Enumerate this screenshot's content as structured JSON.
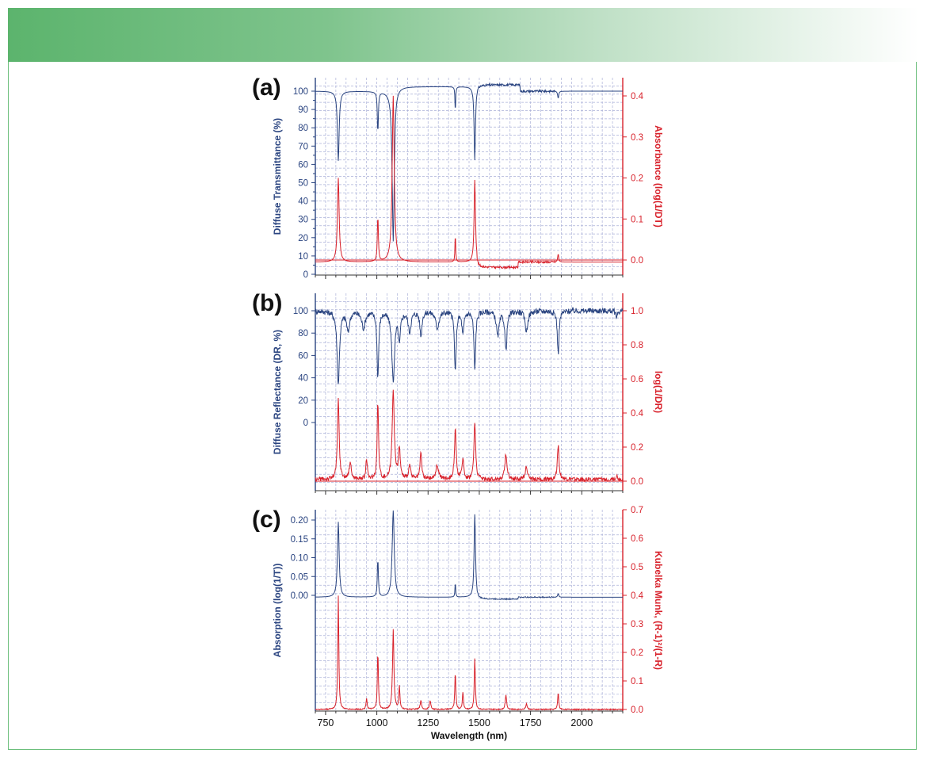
{
  "colors": {
    "blue": "#2a4480",
    "red": "#d8212b",
    "grid": "#aab0d8",
    "banner_green": "#5cb46d",
    "frame_green": "#6cbf7c"
  },
  "chart_data": [
    {
      "type": "line",
      "panel_label": "(a)",
      "xlim": [
        700,
        2200
      ],
      "ylabel": "Diffuse Transmittance (%)",
      "ylabel_right": "Absorbance (log(1/DT)",
      "ylim": [
        0,
        105
      ],
      "ylim_right": [
        -0.03,
        0.445
      ],
      "yticks": [
        0,
        10,
        20,
        30,
        40,
        50,
        60,
        70,
        80,
        90,
        100
      ],
      "yticks_right": [
        0.0,
        0.1,
        0.2,
        0.3,
        0.4
      ],
      "yticks_right_labels": [
        "0.0",
        "0.1",
        "0.2",
        "0.3",
        "0.4"
      ],
      "grid": true,
      "series": [
        {
          "axis": "left",
          "color": "#2a4480",
          "baseline": 100,
          "noise": 0.6,
          "noise_from": 1480,
          "noise_to": 1870,
          "plateaus": [
            [
              1090,
              1480,
              102.5
            ],
            [
              1480,
              1700,
              103.5
            ]
          ],
          "peaks": [
            [
              812,
              -38,
              5
            ],
            [
              1005,
              -22,
              3
            ],
            [
              1080,
              -82,
              6
            ],
            [
              1383,
              -14,
              2
            ],
            [
              1478,
              -40,
              4
            ],
            [
              1885,
              -4,
              3
            ]
          ]
        },
        {
          "axis": "right",
          "color": "#d8212b",
          "baseline": -0.005,
          "noise": 0.0025,
          "noise_from": 1480,
          "noise_to": 1870,
          "plateaus": [
            [
              1490,
              1690,
              -0.018
            ]
          ],
          "peaks": [
            [
              812,
              0.205,
              5
            ],
            [
              1005,
              0.11,
              3
            ],
            [
              1080,
              0.405,
              6
            ],
            [
              1383,
              0.07,
              2
            ],
            [
              1478,
              0.2,
              4
            ],
            [
              1885,
              0.02,
              3
            ]
          ],
          "flat_line": 0.0
        }
      ]
    },
    {
      "type": "line",
      "panel_label": "(b)",
      "xlim": [
        700,
        2200
      ],
      "ylabel": "Diffuse Reflectance (DR, %)",
      "ylabel_right": "log(1/DR)",
      "ylim_right": [
        -0.03,
        1.1
      ],
      "yticks_left_values": [
        0,
        20,
        40,
        60,
        80,
        100
      ],
      "yticks_left_labels": [
        "0",
        "20",
        "40",
        "60",
        "80",
        "100"
      ],
      "left_axis_map": {
        "value_at_top": 100,
        "right_equiv_top": 1.0,
        "value_at_bottom": 0,
        "right_equiv_bottom": 0.34
      },
      "yticks_right": [
        0.0,
        0.2,
        0.4,
        0.6,
        0.8,
        1.0
      ],
      "yticks_right_labels": [
        "0.0",
        "0.2",
        "0.4",
        "0.6",
        "0.8",
        "1.0"
      ],
      "grid": true,
      "series": [
        {
          "axis": "left",
          "color": "#2a4480",
          "baseline": 100,
          "noise": 2.5,
          "noise_from": 700,
          "noise_to": 2200,
          "peaks": [
            [
              812,
              -65,
              7
            ],
            [
              860,
              -18,
              8
            ],
            [
              935,
              -15,
              10
            ],
            [
              1005,
              -58,
              5
            ],
            [
              1080,
              -62,
              8
            ],
            [
              1110,
              -25,
              6
            ],
            [
              1160,
              -18,
              8
            ],
            [
              1215,
              -22,
              6
            ],
            [
              1295,
              -15,
              10
            ],
            [
              1383,
              -55,
              5
            ],
            [
              1420,
              -20,
              6
            ],
            [
              1478,
              -52,
              5
            ],
            [
              1590,
              -22,
              8
            ],
            [
              1630,
              -35,
              6
            ],
            [
              1730,
              -18,
              8
            ],
            [
              1885,
              -38,
              5
            ],
            [
              2170,
              -5,
              5
            ]
          ]
        },
        {
          "axis": "right",
          "color": "#d8212b",
          "baseline": 0.01,
          "noise": 0.012,
          "noise_from": 700,
          "noise_to": 2200,
          "peaks": [
            [
              812,
              0.47,
              5
            ],
            [
              870,
              0.1,
              6
            ],
            [
              950,
              0.12,
              4
            ],
            [
              1005,
              0.45,
              4
            ],
            [
              1080,
              0.53,
              6
            ],
            [
              1110,
              0.18,
              5
            ],
            [
              1160,
              0.08,
              6
            ],
            [
              1215,
              0.15,
              5
            ],
            [
              1295,
              0.08,
              8
            ],
            [
              1383,
              0.29,
              5
            ],
            [
              1420,
              0.12,
              5
            ],
            [
              1478,
              0.33,
              5
            ],
            [
              1630,
              0.15,
              6
            ],
            [
              1730,
              0.08,
              6
            ],
            [
              1885,
              0.2,
              5
            ],
            [
              2170,
              0.02,
              5
            ]
          ],
          "flat_line": 0.0
        }
      ]
    },
    {
      "type": "line",
      "panel_label": "(c)",
      "xlim": [
        700,
        2200
      ],
      "xlabel": "Wavelength (nm)",
      "xticks": [
        750,
        1000,
        1250,
        1500,
        1750,
        2000
      ],
      "xticks_labels": [
        "750",
        "1000",
        "1250",
        "1500",
        "1750",
        "2000"
      ],
      "ylabel": "Absorption (log(1/T))",
      "ylabel_right": "Kubelka Munk, (R-1)²/(1-R)",
      "ylim_right": [
        0.0,
        0.7
      ],
      "yticks_left_values": [
        0.0,
        0.05,
        0.1,
        0.15,
        0.2
      ],
      "yticks_left_labels": [
        "0.00",
        "0.05",
        "0.10",
        "0.15",
        "0.20"
      ],
      "left_axis_map": {
        "value_at_top": 0.2,
        "right_equiv_top": 0.662,
        "value_at_bottom": 0.0,
        "right_equiv_bottom": 0.4
      },
      "yticks_right": [
        0.0,
        0.1,
        0.2,
        0.3,
        0.4,
        0.5,
        0.6,
        0.7
      ],
      "yticks_right_labels": [
        "0.0",
        "0.1",
        "0.2",
        "0.3",
        "0.4",
        "0.5",
        "0.6",
        "0.7"
      ],
      "grid": true,
      "series": [
        {
          "axis": "left",
          "color": "#2a4480",
          "baseline": -0.005,
          "noise": 0.0015,
          "noise_from": 1480,
          "noise_to": 1870,
          "plateaus": [
            [
              1490,
              1690,
              -0.01
            ]
          ],
          "peaks": [
            [
              812,
              0.2,
              5
            ],
            [
              1005,
              0.1,
              3
            ],
            [
              1080,
              0.23,
              6
            ],
            [
              1383,
              0.04,
              2
            ],
            [
              1478,
              0.22,
              4
            ],
            [
              1885,
              0.01,
              3
            ]
          ]
        },
        {
          "axis": "right",
          "color": "#d8212b",
          "baseline": 0.0,
          "noise": 0.002,
          "noise_from": 700,
          "noise_to": 2200,
          "peaks": [
            [
              812,
              0.4,
              3
            ],
            [
              950,
              0.04,
              3
            ],
            [
              1005,
              0.2,
              3
            ],
            [
              1080,
              0.28,
              4
            ],
            [
              1110,
              0.08,
              3
            ],
            [
              1215,
              0.03,
              4
            ],
            [
              1260,
              0.03,
              4
            ],
            [
              1383,
              0.13,
              3
            ],
            [
              1420,
              0.06,
              3
            ],
            [
              1478,
              0.18,
              3
            ],
            [
              1630,
              0.05,
              4
            ],
            [
              1730,
              0.02,
              4
            ],
            [
              1885,
              0.06,
              3
            ]
          ]
        }
      ]
    }
  ]
}
